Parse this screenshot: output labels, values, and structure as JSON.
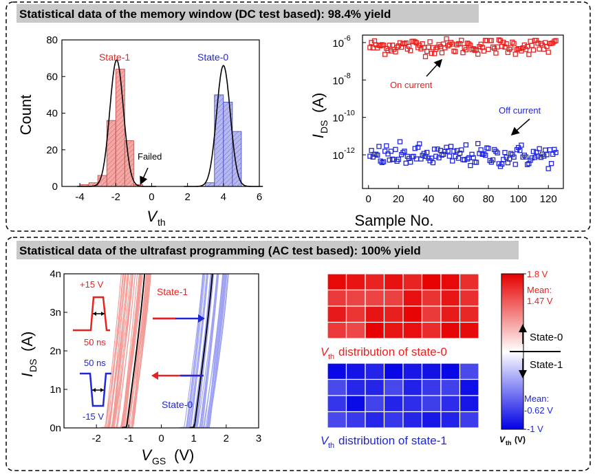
{
  "panels": {
    "top_title": "Statistical data of the memory window (DC test based): 98.4% yield",
    "bottom_title": "Statistical data of the ultrafast programming (AC test based): 100% yield"
  },
  "colors": {
    "red": "#e8211f",
    "blue": "#1f26d6",
    "red_fill": "#f3a8a5",
    "blue_fill": "#b6b8ef",
    "banner": "#c9c9c9"
  },
  "chart_data": [
    {
      "id": "histogram",
      "type": "bar",
      "xlabel": "V",
      "xlabel_sub": "th",
      "ylabel": "Count",
      "xlim": [
        -5,
        6
      ],
      "ylim": [
        0,
        80
      ],
      "xticks": [
        -4,
        -2,
        0,
        2,
        4,
        6
      ],
      "yticks": [
        0,
        20,
        40,
        60,
        80
      ],
      "bin_width": 0.5,
      "series": [
        {
          "name": "State-1",
          "centers": [
            -3.75,
            -3.25,
            -2.75,
            -2.25,
            -1.75,
            -1.25,
            -0.75
          ],
          "values": [
            1,
            2,
            6,
            36,
            64,
            25,
            1
          ]
        },
        {
          "name": "State-0",
          "centers": [
            3.25,
            3.75,
            4.25,
            4.75
          ],
          "values": [
            2,
            50,
            46,
            30
          ]
        }
      ],
      "fits": [
        {
          "name": "State-1",
          "mean": -1.95,
          "sigma": 0.38,
          "peak": 69
        },
        {
          "name": "State-0",
          "mean": 4.0,
          "sigma": 0.38,
          "peak": 66
        }
      ],
      "annotations": {
        "state1": "State-1",
        "state0": "State-0",
        "failed": "Failed"
      }
    },
    {
      "id": "current_scatter",
      "type": "scatter",
      "xlabel": "Sample No.",
      "ylabel": "I",
      "ylabel_sub": "DS",
      "ylabel_unit": "(A)",
      "xlim": [
        -4,
        130
      ],
      "ylim_log10": [
        -13.8,
        -5.6
      ],
      "xticks": [
        0,
        20,
        40,
        60,
        80,
        100,
        120
      ],
      "yticks_log10": [
        -12,
        -10,
        -8,
        -6
      ],
      "yticks_labels": [
        {
          "base": "10",
          "exp": "-12"
        },
        {
          "base": "10",
          "exp": "-10"
        },
        {
          "base": "10",
          "exp": "-8"
        },
        {
          "base": "10",
          "exp": "-6"
        }
      ],
      "samples": 125,
      "series": [
        {
          "name": "On current",
          "center_log10": -6.2,
          "spread_log10": 0.35
        },
        {
          "name": "Off current",
          "center_log10": -12.05,
          "spread_log10": 0.5
        }
      ],
      "annotations": {
        "on": "On current",
        "off": "Off current"
      }
    },
    {
      "id": "transfer_curves",
      "type": "line",
      "xlabel": "V",
      "xlabel_sub": "GS",
      "xlabel_unit": "(V)",
      "ylabel": "I",
      "ylabel_sub": "DS",
      "ylabel_unit": "(A)",
      "xlim": [
        -3,
        3
      ],
      "ylim": [
        0,
        4
      ],
      "xticks": [
        -2,
        -1,
        0,
        1,
        2,
        3
      ],
      "yticks": [
        0,
        1,
        2,
        3,
        4
      ],
      "ytick_labels": [
        "0n",
        "1n",
        "2n",
        "3n",
        "4n"
      ],
      "series": [
        {
          "name": "State-1",
          "vth_range": [
            -1.4,
            -0.4
          ],
          "mean_vth": -0.62,
          "curves": 40
        },
        {
          "name": "State-0",
          "vth_range": [
            1.1,
            1.9
          ],
          "mean_vth": 1.47,
          "curves": 40
        }
      ],
      "annotations": {
        "state1": "State-1",
        "state0": "State-0",
        "pulse_pos_v": "+15 V",
        "pulse_pos_t": "50 ns",
        "pulse_neg_t": "50 ns",
        "pulse_neg_v": "-15 V"
      }
    },
    {
      "id": "heatmaps",
      "type": "heatmap",
      "rows": 4,
      "cols": 8,
      "state0_label": "distribution of state-0",
      "state1_label": "distribution of state-1",
      "label_prefix": "V",
      "label_sub": "th",
      "colorbar": {
        "max_label": "1.8 V",
        "min_label": "-1 V",
        "mean0_line1": "Mean:",
        "mean0_line2": "1.47 V",
        "mean1_line1": "Mean:",
        "mean1_line2": "-0.62 V",
        "up_label": "State-0",
        "down_label": "State-1",
        "axis_label": "V",
        "axis_sub": "th",
        "axis_unit": "(V)",
        "range": [
          -1,
          1.8
        ]
      }
    }
  ]
}
